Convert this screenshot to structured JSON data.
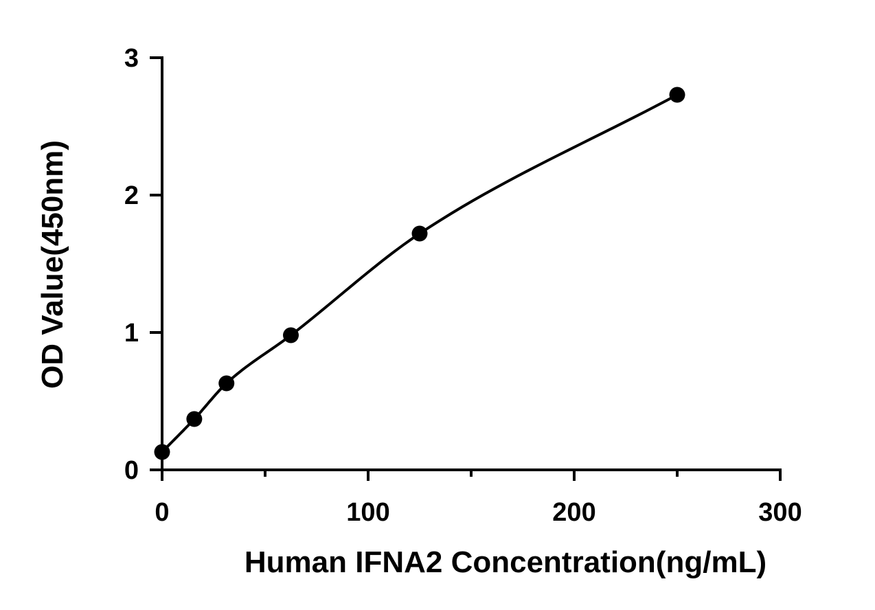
{
  "chart_data": {
    "type": "scatter",
    "title": "",
    "xlabel": "Human IFNA2 Concentration(ng/mL)",
    "ylabel": "OD Value(450nm)",
    "xlim": [
      0,
      300
    ],
    "ylim": [
      0,
      3
    ],
    "x_ticks": [
      0,
      100,
      200,
      300
    ],
    "x_minor_ticks": [
      50,
      150,
      250
    ],
    "y_ticks": [
      0,
      1,
      2,
      3
    ],
    "grid": false,
    "legend": "none",
    "fit_line": true,
    "series": [
      {
        "x": [
          0,
          15.625,
          31.25,
          62.5,
          125,
          250
        ],
        "y": [
          0.13,
          0.37,
          0.63,
          0.98,
          1.72,
          2.73
        ]
      }
    ],
    "colors": {
      "marker": "#000000",
      "line": "#000000",
      "axis": "#000000"
    }
  }
}
